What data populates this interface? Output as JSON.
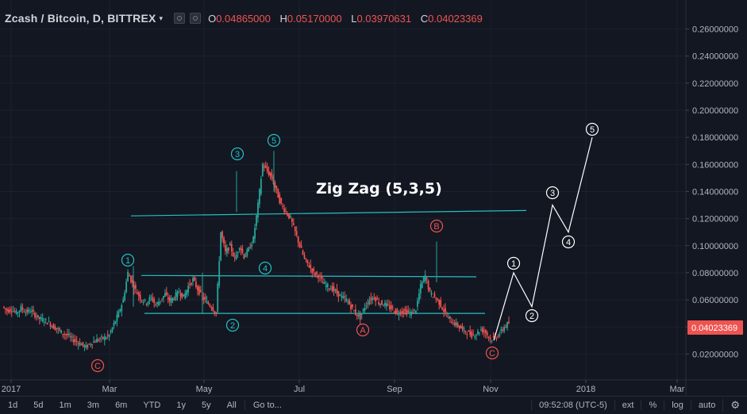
{
  "header": {
    "symbol": "Zcash / Bitcoin, D, BITTREX",
    "caret": "▾",
    "ohlc": [
      {
        "key": "O",
        "value": "0.04865000"
      },
      {
        "key": "H",
        "value": "0.05170000"
      },
      {
        "key": "L",
        "value": "0.03970631"
      },
      {
        "key": "C",
        "value": "0.04023369"
      }
    ]
  },
  "bottom_bar": {
    "timeframes": [
      "1d",
      "5d",
      "1m",
      "3m",
      "6m",
      "YTD",
      "1y",
      "5y",
      "All"
    ],
    "goto": "Go to...",
    "clock": "09:52:08 (UTC-5)",
    "options": [
      "ext",
      "%",
      "log",
      "auto"
    ],
    "settings_icon": "gear-icon"
  },
  "colors": {
    "background": "#131722",
    "up": "#26a69a",
    "down": "#ef5350",
    "trendline": "#22c1c3",
    "projection": "#ffffff",
    "last_price_bg": "#ef5350"
  },
  "chart_data": {
    "type": "candlestick",
    "title": "Zcash / Bitcoin, D, BITTREX",
    "annotation": "Zig Zag (5,3,5)",
    "ylim": [
      0.0,
      0.27
    ],
    "price_ticks": [
      "0.26000000",
      "0.24000000",
      "0.22000000",
      "0.20000000",
      "0.18000000",
      "0.16000000",
      "0.14000000",
      "0.12000000",
      "0.10000000",
      "0.08000000",
      "0.06000000",
      "0.04000000",
      "0.02000000"
    ],
    "time_ticks": [
      "2017",
      "Mar",
      "May",
      "Jul",
      "Sep",
      "Nov",
      "2018",
      "Mar"
    ],
    "last_price": "0.04023369",
    "close_price_path": [
      0.055,
      0.052,
      0.053,
      0.05,
      0.054,
      0.051,
      0.052,
      0.049,
      0.046,
      0.045,
      0.043,
      0.04,
      0.038,
      0.035,
      0.034,
      0.031,
      0.029,
      0.027,
      0.025,
      0.028,
      0.03,
      0.031,
      0.032,
      0.034,
      0.042,
      0.05,
      0.06,
      0.08,
      0.072,
      0.065,
      0.06,
      0.058,
      0.062,
      0.056,
      0.06,
      0.064,
      0.059,
      0.062,
      0.066,
      0.062,
      0.07,
      0.075,
      0.068,
      0.062,
      0.058,
      0.055,
      0.05,
      0.11,
      0.095,
      0.1,
      0.09,
      0.1,
      0.092,
      0.097,
      0.105,
      0.13,
      0.16,
      0.155,
      0.15,
      0.14,
      0.13,
      0.125,
      0.12,
      0.11,
      0.1,
      0.09,
      0.085,
      0.08,
      0.078,
      0.072,
      0.07,
      0.068,
      0.065,
      0.062,
      0.06,
      0.055,
      0.05,
      0.047,
      0.055,
      0.06,
      0.062,
      0.058,
      0.057,
      0.055,
      0.053,
      0.05,
      0.052,
      0.051,
      0.05,
      0.053,
      0.07,
      0.078,
      0.065,
      0.062,
      0.058,
      0.052,
      0.046,
      0.043,
      0.041,
      0.038,
      0.036,
      0.034,
      0.035,
      0.038,
      0.036,
      0.031,
      0.032,
      0.035,
      0.04,
      0.043
    ],
    "trendlines": [
      {
        "start": [
          "Jan 2017",
          0.122
        ],
        "end": [
          "Dec 2017",
          0.126
        ]
      },
      {
        "start": [
          "Mar 2017",
          0.078
        ],
        "end": [
          "Nov 2017",
          0.077
        ]
      },
      {
        "start": [
          "Mar 2017",
          0.05
        ],
        "end": [
          "Nov 2017",
          0.05
        ]
      }
    ],
    "wave_labels": [
      {
        "text": "1",
        "style": "cyan"
      },
      {
        "text": "2",
        "style": "cyan"
      },
      {
        "text": "3",
        "style": "cyan"
      },
      {
        "text": "4",
        "style": "cyan"
      },
      {
        "text": "5",
        "style": "cyan"
      },
      {
        "text": "A",
        "style": "red"
      },
      {
        "text": "B",
        "style": "red"
      },
      {
        "text": "C",
        "style": "red"
      },
      {
        "text": "C",
        "style": "red"
      },
      {
        "text": "1",
        "style": "white"
      },
      {
        "text": "2",
        "style": "white"
      },
      {
        "text": "3",
        "style": "white"
      },
      {
        "text": "4",
        "style": "white"
      },
      {
        "text": "5",
        "style": "white"
      }
    ],
    "projection": {
      "points": [
        {
          "x": "Nov 2017",
          "y": 0.03
        },
        {
          "x": "Nov 2017",
          "y": 0.08
        },
        {
          "x": "Dec 2017",
          "y": 0.055
        },
        {
          "x": "Dec 2017",
          "y": 0.13
        },
        {
          "x": "Dec 2017",
          "y": 0.11
        },
        {
          "x": "Jan 2018",
          "y": 0.18
        }
      ]
    }
  }
}
